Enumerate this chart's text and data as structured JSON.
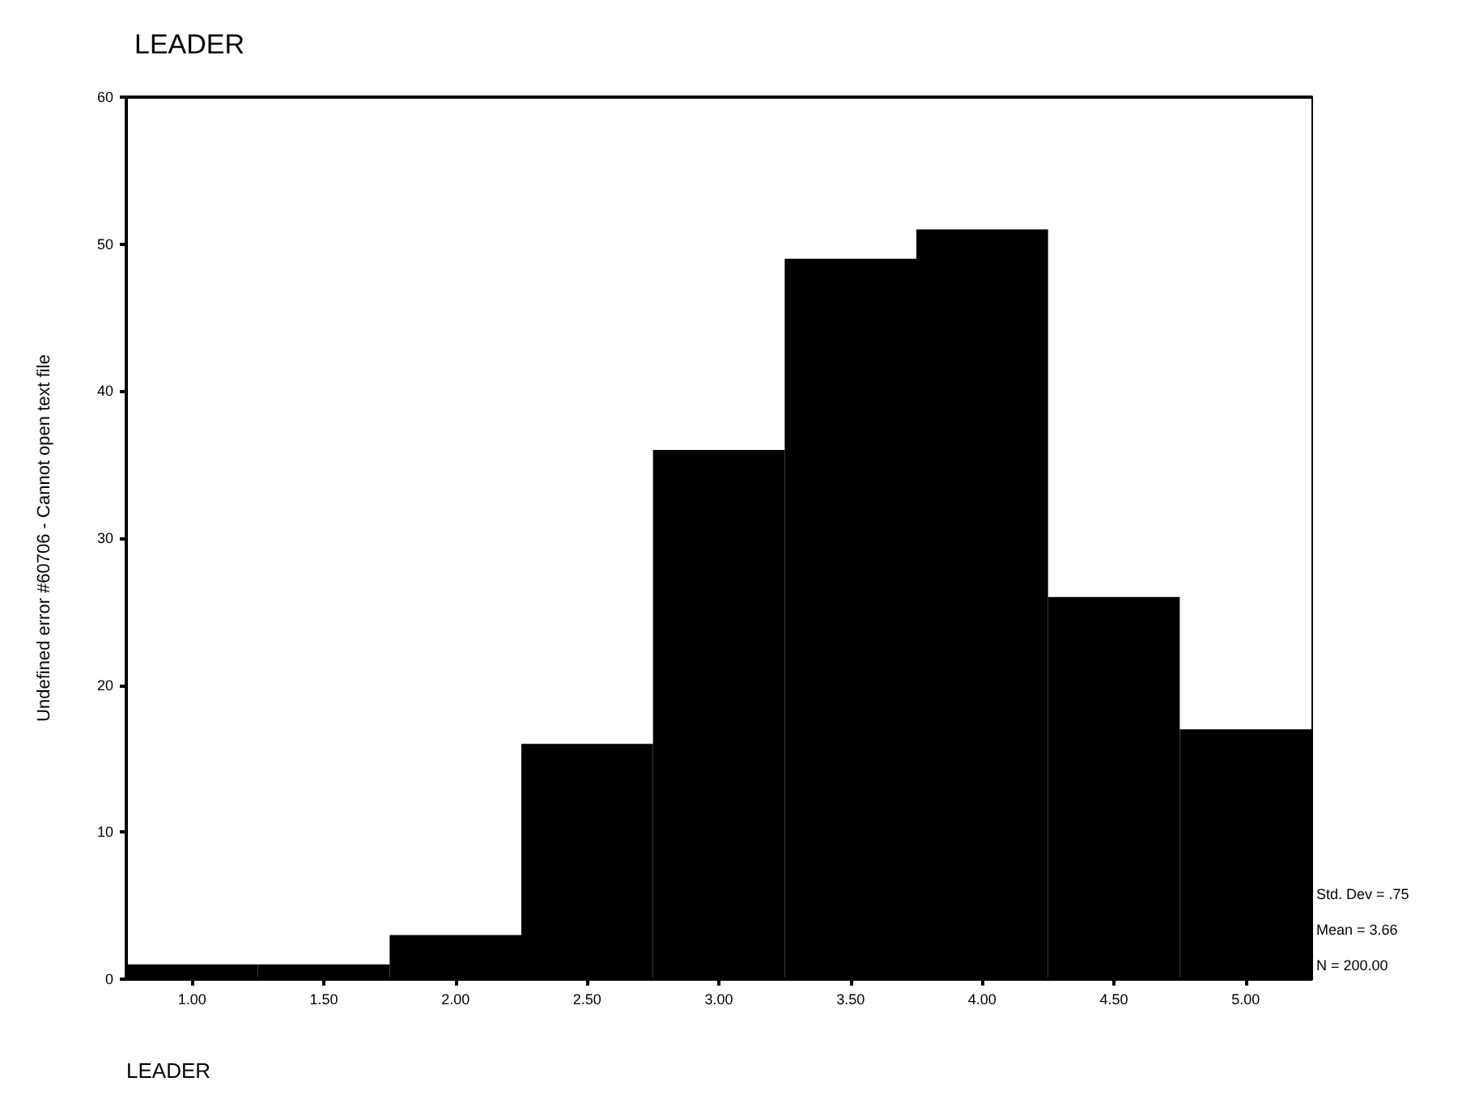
{
  "chart_data": {
    "type": "histogram",
    "title": "LEADER",
    "xlabel": "LEADER",
    "ylabel": "Undefined error #60706 - Cannot open text file",
    "bins": [
      0.75,
      1.25,
      1.75,
      2.25,
      2.75,
      3.25,
      3.75,
      4.25,
      4.75,
      5.25
    ],
    "values": [
      1,
      1,
      3,
      16,
      36,
      49,
      51,
      26,
      17
    ],
    "color": "#000000",
    "xlim": [
      0.75,
      5.25
    ],
    "xticks": [
      {
        "value": 1,
        "label": "1.00"
      },
      {
        "value": 1.5,
        "label": "1.50"
      },
      {
        "value": 2,
        "label": "2.00"
      },
      {
        "value": 2.5,
        "label": "2.50"
      },
      {
        "value": 3,
        "label": "3.00"
      },
      {
        "value": 3.5,
        "label": "3.50"
      },
      {
        "value": 4,
        "label": "4.00"
      },
      {
        "value": 4.5,
        "label": "4.50"
      },
      {
        "value": 5,
        "label": "5.00"
      }
    ],
    "ylim": [
      0,
      60
    ],
    "yticks": [
      0,
      10,
      20,
      30,
      40,
      50,
      60
    ],
    "annotations": [
      "Std. Dev = .75",
      "Mean = 3.66",
      "N = 200.00"
    ]
  }
}
